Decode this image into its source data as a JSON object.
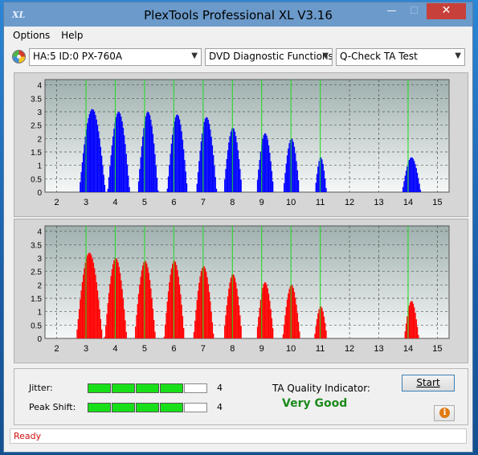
{
  "window": {
    "title": "PlexTools Professional XL V3.16",
    "app_icon_text": "XL"
  },
  "titlebar_buttons": {
    "minimize": "—",
    "maximize": "☐",
    "close": "✕"
  },
  "menu": [
    {
      "label": "Options",
      "underline": "O"
    },
    {
      "label": "Help",
      "underline": "H"
    }
  ],
  "toolbar": {
    "drive": "HA:5 ID:0  PX-760A",
    "function": "DVD Diagnostic Functions",
    "test": "Q-Check TA Test",
    "arrow": "▼"
  },
  "chart_data": [
    {
      "type": "bar",
      "title": "",
      "color": "#0000ff",
      "x_ticks": [
        2,
        3,
        4,
        5,
        6,
        7,
        8,
        9,
        10,
        11,
        12,
        13,
        14,
        15
      ],
      "y_ticks": [
        "0",
        "0.5",
        "1",
        "1.5",
        "2",
        "2.5",
        "3",
        "3.5",
        "4"
      ],
      "xlim": [
        1.6,
        15.4
      ],
      "ylim": [
        0,
        4.2
      ],
      "grid": true,
      "green_markers": [
        3,
        4,
        5,
        6,
        7,
        8,
        9,
        10,
        11,
        14
      ],
      "peaks": [
        {
          "center": 3.2,
          "height": 3.1,
          "width": 0.45
        },
        {
          "center": 4.1,
          "height": 3.0,
          "width": 0.38
        },
        {
          "center": 5.1,
          "height": 3.0,
          "width": 0.35
        },
        {
          "center": 6.1,
          "height": 2.9,
          "width": 0.35
        },
        {
          "center": 7.1,
          "height": 2.8,
          "width": 0.35
        },
        {
          "center": 8.0,
          "height": 2.4,
          "width": 0.32
        },
        {
          "center": 9.1,
          "height": 2.2,
          "width": 0.3
        },
        {
          "center": 10.0,
          "height": 2.0,
          "width": 0.28
        },
        {
          "center": 11.0,
          "height": 1.3,
          "width": 0.2
        },
        {
          "center": 14.1,
          "height": 1.3,
          "width": 0.32
        }
      ]
    },
    {
      "type": "bar",
      "title": "",
      "color": "#ff0000",
      "x_ticks": [
        2,
        3,
        4,
        5,
        6,
        7,
        8,
        9,
        10,
        11,
        12,
        13,
        14,
        15
      ],
      "y_ticks": [
        "0",
        "0.5",
        "1",
        "1.5",
        "2",
        "2.5",
        "3",
        "3.5",
        "4"
      ],
      "xlim": [
        1.6,
        15.4
      ],
      "ylim": [
        0,
        4.2
      ],
      "grid": true,
      "green_markers": [
        3,
        4,
        5,
        6,
        7,
        8,
        9,
        10,
        11,
        14
      ],
      "peaks": [
        {
          "center": 3.1,
          "height": 3.2,
          "width": 0.45
        },
        {
          "center": 4.0,
          "height": 3.0,
          "width": 0.38
        },
        {
          "center": 5.0,
          "height": 2.9,
          "width": 0.36
        },
        {
          "center": 6.0,
          "height": 2.9,
          "width": 0.35
        },
        {
          "center": 7.0,
          "height": 2.7,
          "width": 0.35
        },
        {
          "center": 8.0,
          "height": 2.4,
          "width": 0.32
        },
        {
          "center": 9.1,
          "height": 2.1,
          "width": 0.3
        },
        {
          "center": 10.0,
          "height": 2.0,
          "width": 0.3
        },
        {
          "center": 11.0,
          "height": 1.2,
          "width": 0.22
        },
        {
          "center": 14.1,
          "height": 1.4,
          "width": 0.25
        }
      ]
    }
  ],
  "metrics": {
    "jitter": {
      "label": "Jitter:",
      "value": "4",
      "level": 4,
      "max": 5
    },
    "peak_shift": {
      "label": "Peak Shift:",
      "value": "4",
      "level": 4,
      "max": 5
    }
  },
  "quality": {
    "label": "TA Quality Indicator:",
    "value": "Very Good"
  },
  "start_button": "Start",
  "info_button": "i",
  "status": "Ready"
}
